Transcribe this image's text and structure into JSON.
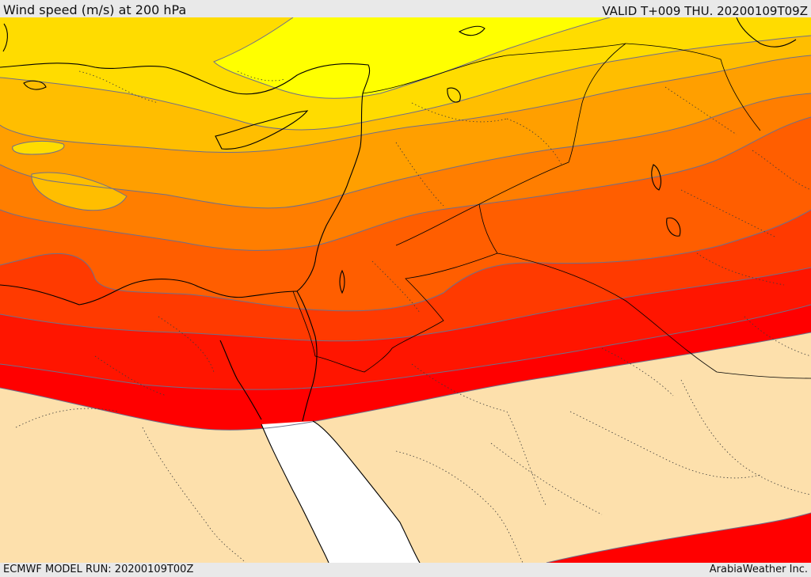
{
  "header": {
    "title": "Wind speed (m/s) at 200 hPa",
    "valid": "VALID T+009 THU. 20200109T09Z"
  },
  "footer": {
    "model_run": "ECMWF MODEL RUN: 20200109T00Z",
    "credit": "ArabiaWeather Inc."
  },
  "palette": {
    "below_threshold": "#fde0ac",
    "band_1": "#ffff00",
    "band_2": "#ffdc00",
    "band_3": "#ffbe00",
    "band_4": "#ff9f00",
    "band_5": "#ff7e00",
    "band_6": "#ff5e00",
    "band_7": "#ff3a00",
    "band_8": "#ff1500",
    "band_9": "#ff0000",
    "sea_unshaded": "#ffffff",
    "coastline": "#000000",
    "border": "#000000",
    "contour_line": "#6f6f8a"
  }
}
